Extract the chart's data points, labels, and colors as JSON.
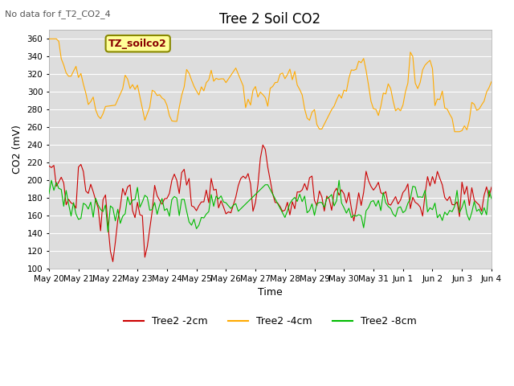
{
  "title": "Tree 2 Soil CO2",
  "top_left_text": "No data for f_T2_CO2_4",
  "legend_box_text": "TZ_soilco2",
  "xlabel": "Time",
  "ylabel": "CO2 (mV)",
  "ylim": [
    100,
    370
  ],
  "yticks": [
    100,
    120,
    140,
    160,
    180,
    200,
    220,
    240,
    260,
    280,
    300,
    320,
    340,
    360
  ],
  "bg_color": "#dddddd",
  "line_2cm_color": "#cc0000",
  "line_4cm_color": "#ffaa00",
  "line_8cm_color": "#00bb00",
  "legend_entries": [
    "Tree2 -2cm",
    "Tree2 -4cm",
    "Tree2 -8cm"
  ],
  "x_tick_labels": [
    "May 20",
    "May 21",
    "May 22",
    "May 23",
    "May 24",
    "May 25",
    "May 26",
    "May 27",
    "May 28",
    "May 29",
    "May 30",
    "May 31",
    "Jun 1",
    "Jun 2",
    "Jun 3",
    "Jun 4"
  ]
}
